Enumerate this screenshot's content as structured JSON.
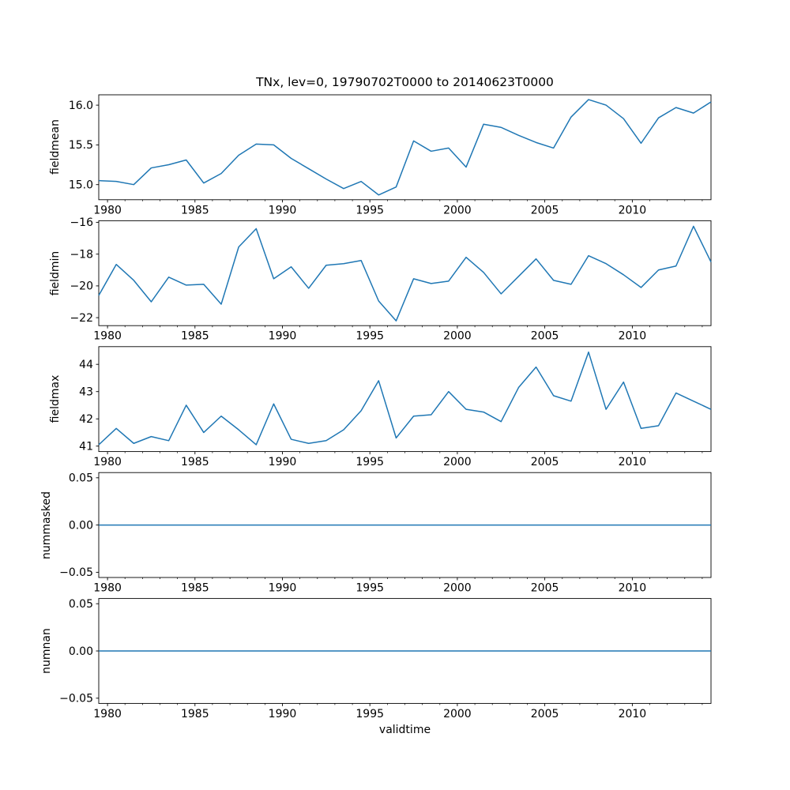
{
  "title": "TNx, lev=0, 19790702T0000 to 20140623T0000",
  "xlabel": "validtime",
  "colors": {
    "background": "#ffffff",
    "line": "#1f77b4",
    "axis": "#000000",
    "text": "#000000"
  },
  "chart_data": {
    "type": "line",
    "title": "TNx, lev=0, 19790702T0000 to 20140623T0000",
    "xlabel": "validtime",
    "xlim": [
      1979.5,
      2014.5
    ],
    "x_major_ticks": [
      1980,
      1985,
      1990,
      1995,
      2000,
      2005,
      2010
    ],
    "x_minor_tick_step": 1,
    "years": [
      1979,
      1980,
      1981,
      1982,
      1983,
      1984,
      1985,
      1986,
      1987,
      1988,
      1989,
      1990,
      1991,
      1992,
      1993,
      1994,
      1995,
      1996,
      1997,
      1998,
      1999,
      2000,
      2001,
      2002,
      2003,
      2004,
      2005,
      2006,
      2007,
      2008,
      2009,
      2010,
      2011,
      2012,
      2013,
      2014
    ],
    "x_offset_years": 0.5,
    "subplots": [
      {
        "ylabel": "fieldmean",
        "ylim": [
          14.81,
          16.13
        ],
        "yticks": [
          {
            "v": 16.0,
            "label": "16.0"
          },
          {
            "v": 15.5,
            "label": "15.5"
          },
          {
            "v": 15.0,
            "label": "15.0"
          }
        ],
        "values": [
          15.05,
          15.04,
          15.0,
          15.21,
          15.25,
          15.31,
          15.02,
          15.14,
          15.37,
          15.51,
          15.5,
          15.33,
          15.2,
          15.07,
          14.95,
          15.04,
          14.87,
          14.97,
          15.55,
          15.42,
          15.46,
          15.22,
          15.76,
          15.72,
          15.62,
          15.53,
          15.46,
          15.85,
          16.07,
          16.0,
          15.83,
          15.52,
          15.84,
          15.97,
          15.9,
          16.04
        ]
      },
      {
        "ylabel": "fieldmin",
        "ylim": [
          -22.5,
          -15.9
        ],
        "yticks": [
          {
            "v": -16,
            "label": "−16"
          },
          {
            "v": -18,
            "label": "−18"
          },
          {
            "v": -20,
            "label": "−20"
          },
          {
            "v": -22,
            "label": "−22"
          }
        ],
        "values": [
          -20.6,
          -18.65,
          -19.65,
          -21.0,
          -19.45,
          -19.95,
          -19.9,
          -21.15,
          -17.55,
          -16.4,
          -19.55,
          -18.8,
          -20.15,
          -18.7,
          -18.6,
          -18.4,
          -20.95,
          -22.2,
          -19.55,
          -19.85,
          -19.7,
          -18.2,
          -19.15,
          -20.5,
          -19.4,
          -18.3,
          -19.65,
          -19.9,
          -18.1,
          -18.6,
          -19.3,
          -20.1,
          -19.0,
          -18.75,
          -16.25,
          -18.5
        ]
      },
      {
        "ylabel": "fieldmax",
        "ylim": [
          40.8,
          44.65
        ],
        "yticks": [
          {
            "v": 44,
            "label": "44"
          },
          {
            "v": 43,
            "label": "43"
          },
          {
            "v": 42,
            "label": "42"
          },
          {
            "v": 41,
            "label": "41"
          }
        ],
        "values": [
          41.05,
          41.65,
          41.1,
          41.35,
          41.2,
          42.5,
          41.5,
          42.1,
          41.6,
          41.05,
          42.55,
          41.25,
          41.1,
          41.2,
          41.6,
          42.3,
          43.4,
          41.3,
          42.1,
          42.15,
          43.0,
          42.35,
          42.25,
          41.9,
          43.15,
          43.9,
          42.85,
          42.65,
          44.45,
          42.35,
          43.35,
          41.65,
          41.75,
          42.95,
          42.65,
          42.35
        ]
      },
      {
        "ylabel": "nummasked",
        "ylim": [
          -0.0555,
          0.0555
        ],
        "yticks": [
          {
            "v": 0.05,
            "label": "0.05"
          },
          {
            "v": 0.0,
            "label": "0.00"
          },
          {
            "v": -0.05,
            "label": "−0.05"
          }
        ],
        "values": [
          0,
          0,
          0,
          0,
          0,
          0,
          0,
          0,
          0,
          0,
          0,
          0,
          0,
          0,
          0,
          0,
          0,
          0,
          0,
          0,
          0,
          0,
          0,
          0,
          0,
          0,
          0,
          0,
          0,
          0,
          0,
          0,
          0,
          0,
          0,
          0
        ]
      },
      {
        "ylabel": "numnan",
        "ylim": [
          -0.0555,
          0.0555
        ],
        "yticks": [
          {
            "v": 0.05,
            "label": "0.05"
          },
          {
            "v": 0.0,
            "label": "0.00"
          },
          {
            "v": -0.05,
            "label": "−0.05"
          }
        ],
        "values": [
          0,
          0,
          0,
          0,
          0,
          0,
          0,
          0,
          0,
          0,
          0,
          0,
          0,
          0,
          0,
          0,
          0,
          0,
          0,
          0,
          0,
          0,
          0,
          0,
          0,
          0,
          0,
          0,
          0,
          0,
          0,
          0,
          0,
          0,
          0,
          0
        ]
      }
    ]
  }
}
